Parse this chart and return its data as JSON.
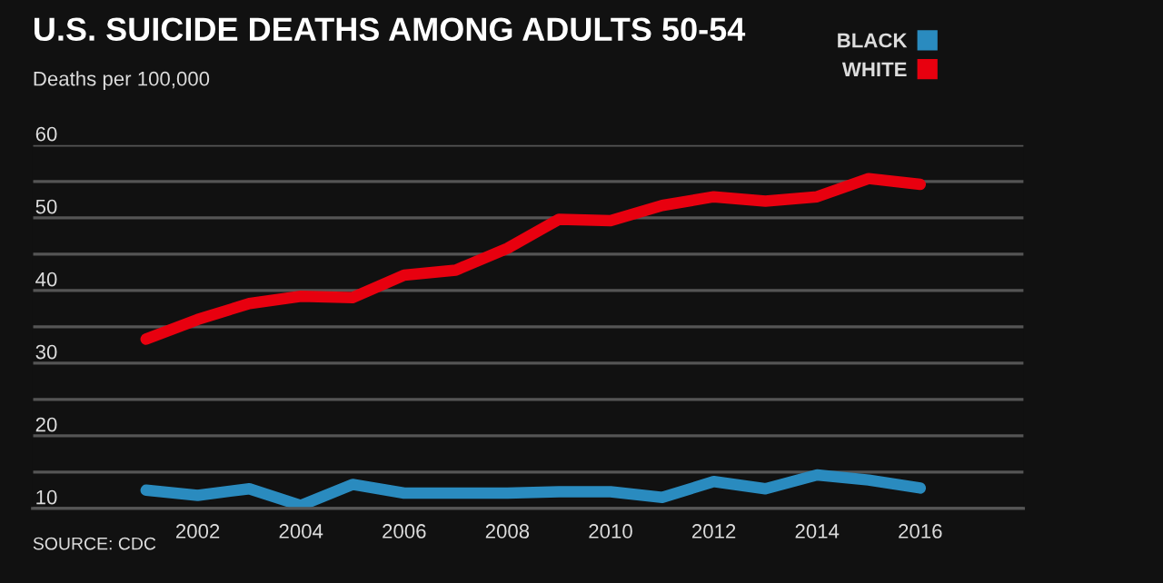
{
  "chart_data": {
    "type": "line",
    "title": "U.S. SUICIDE DEATHS AMONG ADULTS 50-54",
    "ylabel": "Deaths per 100,000",
    "x": [
      2001,
      2002,
      2003,
      2004,
      2005,
      2006,
      2007,
      2008,
      2009,
      2010,
      2011,
      2012,
      2013,
      2014,
      2015,
      2016
    ],
    "series": [
      {
        "name": "BLACK",
        "color": "#2a8bbf",
        "values": [
          12.5,
          11.8,
          12.7,
          10.4,
          13.3,
          12.1,
          12.1,
          12.1,
          12.3,
          12.3,
          11.5,
          13.7,
          12.7,
          14.6,
          13.9,
          12.8
        ]
      },
      {
        "name": "WHITE",
        "color": "#e8000f",
        "values": [
          33.3,
          36.0,
          38.2,
          39.2,
          39.0,
          42.1,
          42.8,
          45.8,
          49.8,
          49.6,
          51.7,
          52.9,
          52.3,
          52.9,
          55.4,
          54.6
        ]
      }
    ],
    "xlim": [
      1998.8,
      2018
    ],
    "xticks": [
      2002,
      2004,
      2006,
      2008,
      2010,
      2012,
      2014,
      2016
    ],
    "ylim": [
      10,
      60
    ],
    "yticks": [
      10,
      {
        "value": 15,
        "label": null
      },
      20,
      {
        "value": 25,
        "label": null
      },
      30,
      {
        "value": 35,
        "label": null
      },
      40,
      {
        "value": 45,
        "label": null
      },
      50,
      {
        "value": 55,
        "label": null
      },
      60
    ],
    "grid": "y",
    "legend": "top right",
    "marker": "none",
    "line_style": "solid",
    "annotations": [
      "SOURCE: CDC"
    ]
  }
}
